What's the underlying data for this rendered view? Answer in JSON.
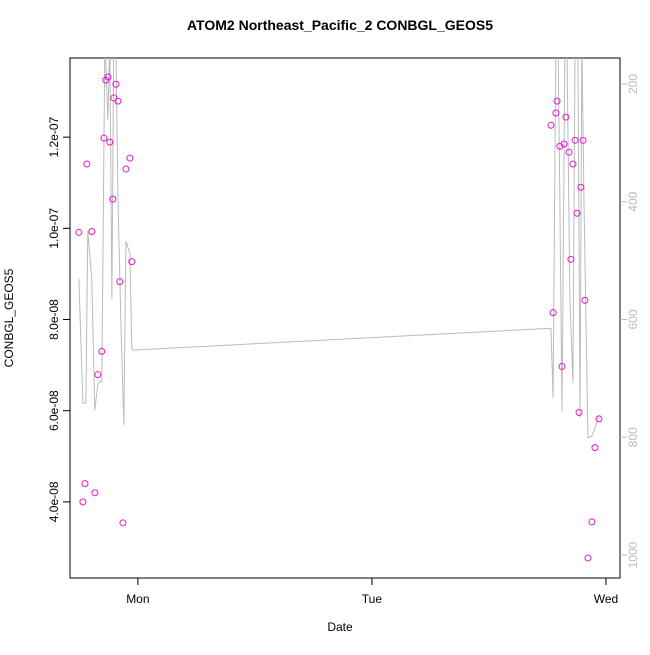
{
  "chart_data": {
    "type": "scatter-line",
    "title": "ATOM2 Northeast_Pacific_2 CONBGL_GEOS5",
    "x_label": "Date",
    "y_label": "CONBGL_GEOS5",
    "xlim": [
      -0.29,
      2.06
    ],
    "xticks": [
      {
        "value": 0,
        "label": "Mon"
      },
      {
        "value": 1,
        "label": "Tue"
      },
      {
        "value": 2,
        "label": "Wed"
      }
    ],
    "ylim": [
      2.33e-08,
      1.3736e-07
    ],
    "yticks": [
      {
        "value": 4e-08,
        "label": "4.0e-08"
      },
      {
        "value": 6e-08,
        "label": "6.0e-08"
      },
      {
        "value": 8e-08,
        "label": "8.0e-08"
      },
      {
        "value": 1e-07,
        "label": "1.0e-07"
      },
      {
        "value": 1.2e-07,
        "label": "1.2e-07"
      }
    ],
    "y2lim": [
      1039,
      156
    ],
    "y2ticks": [
      200,
      400,
      600,
      800,
      1000
    ],
    "series": [
      {
        "color": "#e619c8",
        "mode": "points",
        "x": [
          -0.252,
          -0.235,
          -0.226,
          -0.218,
          -0.197,
          -0.184,
          -0.171,
          -0.154,
          -0.145,
          -0.137,
          -0.128,
          -0.12,
          -0.107,
          -0.103,
          -0.094,
          -0.085,
          -0.077,
          -0.064,
          -0.051,
          -0.034,
          -0.026,
          1.765,
          1.774,
          1.786,
          1.791,
          1.803,
          1.812,
          1.821,
          1.829,
          1.842,
          1.85,
          1.859,
          1.868,
          1.876,
          1.885,
          1.893,
          1.902,
          1.91,
          1.923,
          1.94,
          1.953,
          1.97
        ],
        "values": [
          9.91e-08,
          4e-08,
          4.4e-08,
          1.141e-07,
          9.93e-08,
          4.2e-08,
          6.79e-08,
          7.3e-08,
          1.198e-07,
          1.325e-07,
          1.332e-07,
          1.189e-07,
          1.064e-07,
          1.286e-07,
          1.316e-07,
          1.279e-07,
          8.83e-08,
          3.54e-08,
          1.13e-07,
          1.154e-07,
          9.27e-08,
          1.226e-07,
          8.15e-08,
          1.253e-07,
          1.279e-07,
          1.18e-07,
          6.97e-08,
          1.185e-07,
          1.244e-07,
          1.167e-07,
          9.32e-08,
          1.141e-07,
          1.193e-07,
          1.033e-07,
          5.96e-08,
          1.09e-07,
          1.193e-07,
          8.42e-08,
          2.77e-08,
          3.56e-08,
          5.19e-08,
          5.82e-08
        ]
      },
      {
        "color": "#bbbbbb",
        "mode": "line",
        "axis": "y2",
        "x": [
          -0.252,
          -0.235,
          -0.222,
          -0.214,
          -0.197,
          -0.184,
          -0.171,
          -0.162,
          -0.154,
          -0.141,
          -0.128,
          -0.12,
          -0.111,
          -0.103,
          -0.094,
          -0.085,
          -0.073,
          -0.06,
          -0.051,
          -0.034,
          -0.026,
          -0.021,
          1.765,
          1.774,
          1.786,
          1.795,
          1.803,
          1.812,
          1.825,
          1.833,
          1.846,
          1.859,
          1.868,
          1.88,
          1.889,
          1.897,
          1.906,
          1.923,
          1.94,
          1.953,
          1.97
        ],
        "values": [
          531,
          742,
          742,
          450,
          531,
          754,
          710,
          705,
          705,
          126,
          261,
          126,
          565,
          126,
          126,
          396,
          598,
          779,
          467,
          489,
          649,
          652,
          615,
          733,
          126,
          126,
          396,
          757,
          126,
          126,
          565,
          708,
          126,
          126,
          767,
          126,
          396,
          801,
          798,
          784,
          764
        ]
      }
    ]
  }
}
